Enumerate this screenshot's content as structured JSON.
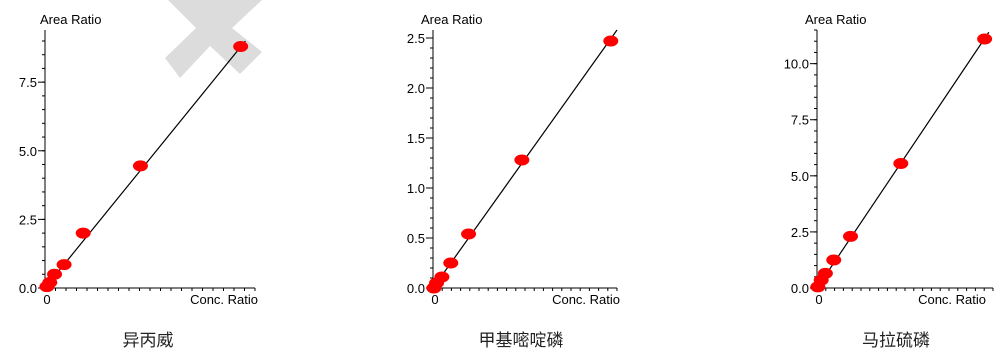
{
  "chart_data": [
    {
      "type": "scatter",
      "title": "异丙威",
      "ylabel": "Area Ratio",
      "xlabel": "Conc. Ratio",
      "ylim": [
        0,
        9.4
      ],
      "xlim": [
        0,
        2.2
      ],
      "yticks": [
        0,
        2.5,
        5,
        7.5
      ],
      "ytick_labels": [
        "0.0",
        "2.5",
        "5.0",
        "7.5"
      ],
      "xtick_labels": [
        "0"
      ],
      "grid": false,
      "points": [
        {
          "x": 0.02,
          "y": 0.05
        },
        {
          "x": 0.05,
          "y": 0.2
        },
        {
          "x": 0.1,
          "y": 0.5
        },
        {
          "x": 0.2,
          "y": 0.85
        },
        {
          "x": 0.4,
          "y": 2.0
        },
        {
          "x": 1.0,
          "y": 4.45
        },
        {
          "x": 2.05,
          "y": 8.8
        }
      ],
      "fit_line": {
        "x": [
          0,
          2.1
        ],
        "y": [
          0,
          9.0
        ]
      }
    },
    {
      "type": "scatter",
      "title": "甲基嘧啶磷",
      "ylabel": "Area Ratio",
      "xlabel": "Conc. Ratio",
      "ylim": [
        0,
        2.58
      ],
      "xlim": [
        0,
        2.07
      ],
      "yticks": [
        0,
        0.5,
        1,
        1.5,
        2,
        2.5
      ],
      "ytick_labels": [
        "0.0",
        "0.5",
        "1.0",
        "1.5",
        "2.0",
        "2.5"
      ],
      "xtick_labels": [
        "0"
      ],
      "grid": false,
      "points": [
        {
          "x": 0.01,
          "y": 0.0
        },
        {
          "x": 0.04,
          "y": 0.05
        },
        {
          "x": 0.1,
          "y": 0.11
        },
        {
          "x": 0.2,
          "y": 0.25
        },
        {
          "x": 0.4,
          "y": 0.54
        },
        {
          "x": 1.0,
          "y": 1.28
        },
        {
          "x": 2.0,
          "y": 2.47
        }
      ],
      "fit_line": {
        "x": [
          0,
          2.07
        ],
        "y": [
          0,
          2.58
        ]
      }
    },
    {
      "type": "scatter",
      "title": "马拉硫磷",
      "ylabel": "Area Ratio",
      "xlabel": "Conc. Ratio",
      "ylim": [
        0,
        11.5
      ],
      "xlim": [
        0,
        2.1
      ],
      "yticks": [
        0,
        2.5,
        5,
        7.5,
        10
      ],
      "ytick_labels": [
        "0.0",
        "2.5",
        "5.0",
        "7.5",
        "10.0"
      ],
      "xtick_labels": [
        "0"
      ],
      "grid": false,
      "points": [
        {
          "x": 0.01,
          "y": 0.05
        },
        {
          "x": 0.05,
          "y": 0.35
        },
        {
          "x": 0.1,
          "y": 0.65
        },
        {
          "x": 0.2,
          "y": 1.25
        },
        {
          "x": 0.4,
          "y": 2.3
        },
        {
          "x": 1.0,
          "y": 5.55
        },
        {
          "x": 2.0,
          "y": 11.1
        }
      ],
      "fit_line": {
        "x": [
          0,
          2.05
        ],
        "y": [
          0,
          11.4
        ]
      }
    }
  ],
  "colors": {
    "point": "#ff0000",
    "line": "#000000",
    "axis": "#000000",
    "watermark": "#d9d9d9"
  }
}
